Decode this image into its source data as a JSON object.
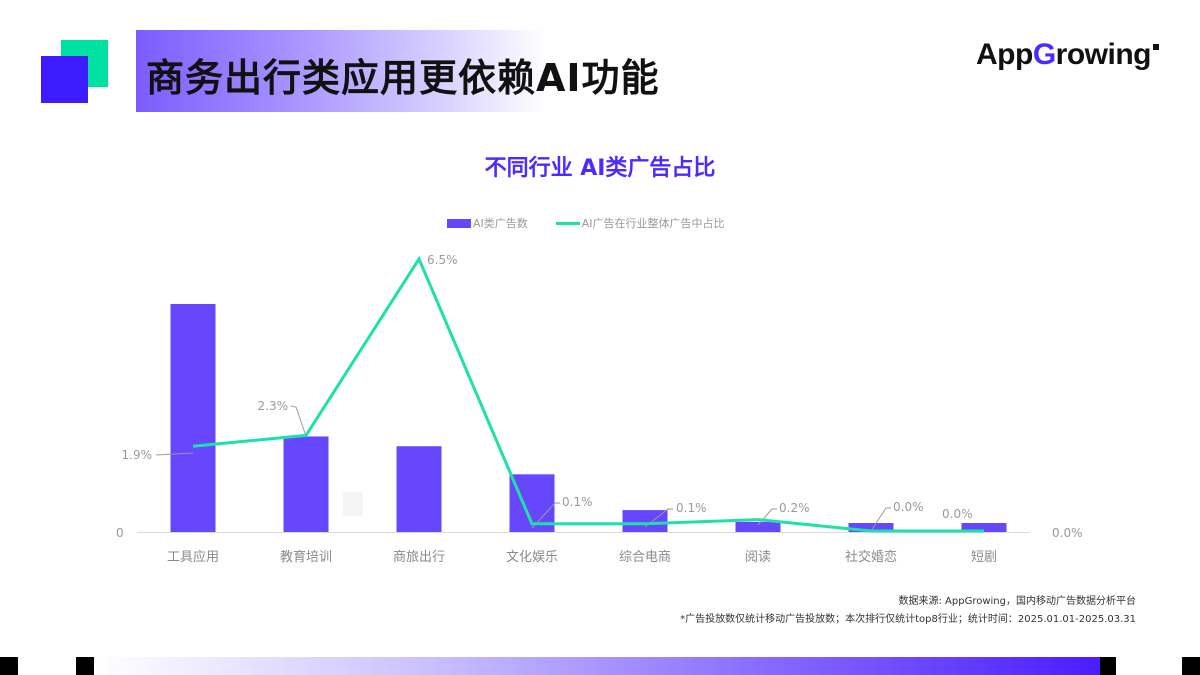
{
  "header": {
    "title": "商务出行类应用更依赖AI功能",
    "logo": {
      "prefix": "App",
      "accent": "G",
      "suffix": "rowing"
    },
    "accent_colors": {
      "green": "#00e0a0",
      "blue": "#3f1cff"
    }
  },
  "chart": {
    "title": "不同行业 AI类广告占比",
    "legend": {
      "bar": "AI类广告数",
      "line": "AI广告在行业整体广告中占比"
    },
    "y_left_zero": "0",
    "y_right_zero": "0.0%"
  },
  "chart_data": {
    "type": "bar",
    "title": "不同行业 AI类广告占比",
    "categories": [
      "工具应用",
      "教育培训",
      "商旅出行",
      "文化娱乐",
      "综合电商",
      "阅读",
      "社交婚恋",
      "短剧"
    ],
    "series": [
      {
        "name": "AI类广告数",
        "type": "bar",
        "color": "#6647fb",
        "values": [
          100,
          41.9,
          37.6,
          25.3,
          9.6,
          4.4,
          3.9,
          3.9
        ],
        "note": "relative heights (left axis unlabeled except 0; 工具应用 = 100)"
      },
      {
        "name": "AI广告在行业整体广告中占比",
        "type": "line",
        "color": "#1ee0a8",
        "values": [
          1.9,
          2.3,
          6.5,
          0.1,
          0.1,
          0.2,
          0.0,
          0.0
        ],
        "labels": [
          "1.9%",
          "2.3%",
          "6.5%",
          "0.1%",
          "0.1%",
          "0.2%",
          "0.0%",
          "0.0%"
        ],
        "unit": "%"
      }
    ],
    "xlabel": "",
    "ylabel": "",
    "y_left_ticks": [
      "0"
    ],
    "y_right_ticks": [
      "0.0%"
    ],
    "legend_position": "top",
    "grid": false
  },
  "footer": {
    "source": "数据来源: AppGrowing，国内移动广告数据分析平台",
    "note": "*广告投放数仅统计移动广告投放数；本次排行仅统计top8行业；统计时间：2025.01.01-2025.03.31"
  }
}
